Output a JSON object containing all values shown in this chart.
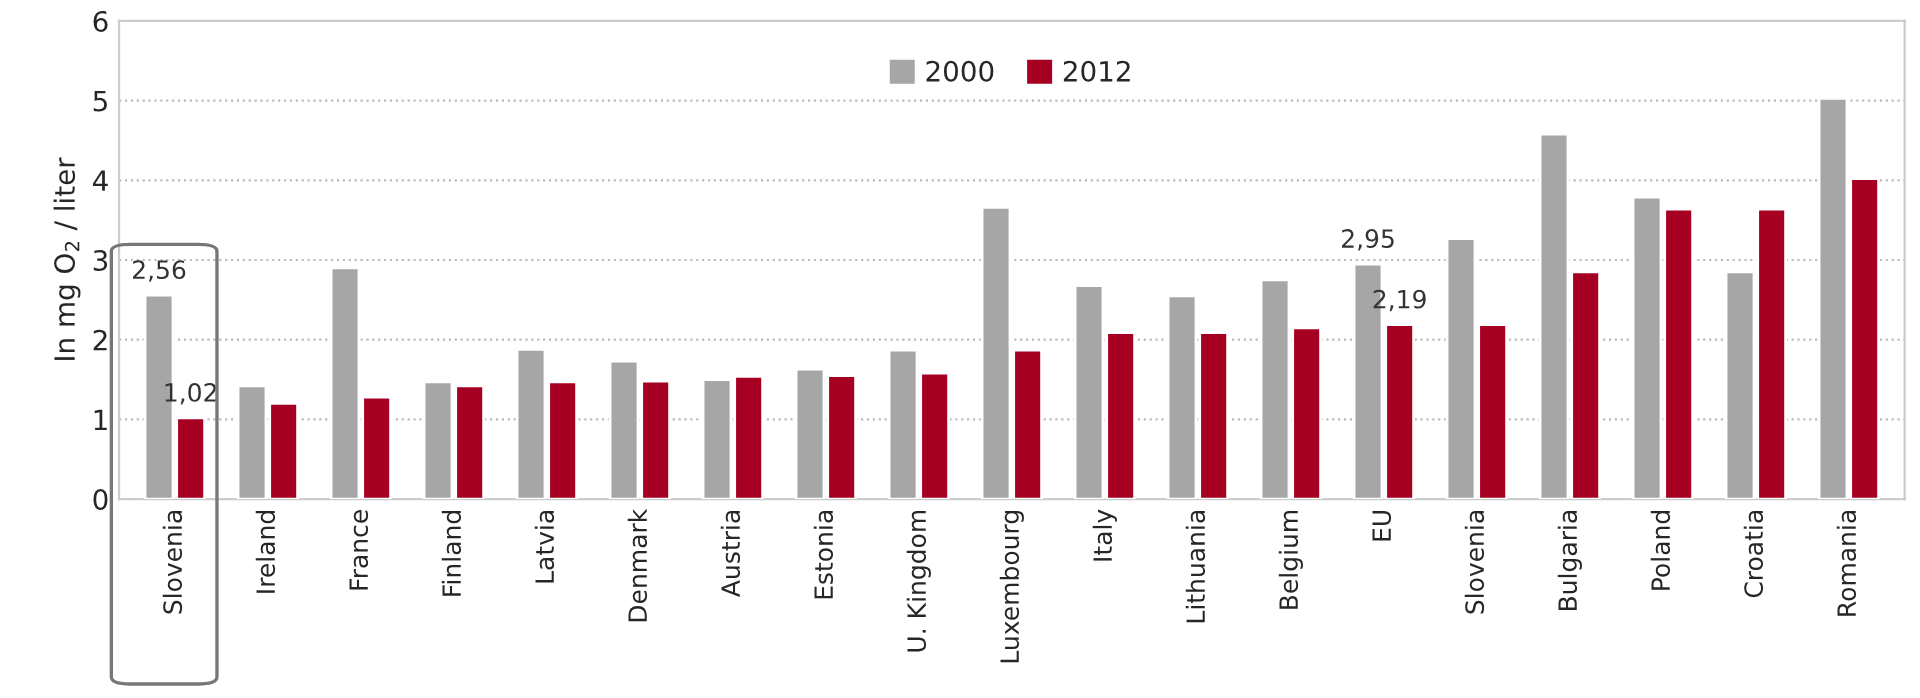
{
  "chart_data": {
    "type": "bar",
    "ylabel": "In mg O$_{2}$ / liter",
    "categories": [
      "Slovenia",
      "Ireland",
      "France",
      "Finland",
      "Latvia",
      "Denmark",
      "Austria",
      "Estonia",
      "U. Kingdom",
      "Luxembourg",
      "Italy",
      "Lithuania",
      "Belgium",
      "EU",
      "Slovenia",
      "Bulgaria",
      "Poland",
      "Croatia",
      "Romania"
    ],
    "series": [
      {
        "name": "2000",
        "color": "#a6a6a6",
        "values": [
          2.56,
          1.42,
          2.9,
          1.47,
          1.88,
          1.73,
          1.5,
          1.63,
          1.87,
          3.66,
          2.68,
          2.55,
          2.75,
          2.95,
          3.27,
          4.58,
          3.79,
          2.85,
          5.03
        ],
        "value_labels": [
          "2,56",
          null,
          null,
          null,
          null,
          null,
          null,
          null,
          null,
          null,
          null,
          null,
          null,
          "2,95",
          null,
          null,
          null,
          null,
          null
        ]
      },
      {
        "name": "2012",
        "color": "#a50021",
        "values": [
          1.02,
          1.2,
          1.28,
          1.42,
          1.47,
          1.48,
          1.54,
          1.55,
          1.58,
          1.87,
          2.09,
          2.09,
          2.15,
          2.19,
          2.19,
          2.85,
          3.64,
          3.64,
          4.02
        ],
        "value_labels": [
          "1,02",
          null,
          null,
          null,
          null,
          null,
          null,
          null,
          null,
          null,
          null,
          null,
          null,
          "2,19",
          null,
          null,
          null,
          null,
          null
        ]
      }
    ],
    "ylim": [
      0,
      6
    ],
    "yticks": [
      0,
      1,
      2,
      3,
      4,
      5,
      6
    ],
    "grid": "y",
    "legend": "top"
  }
}
